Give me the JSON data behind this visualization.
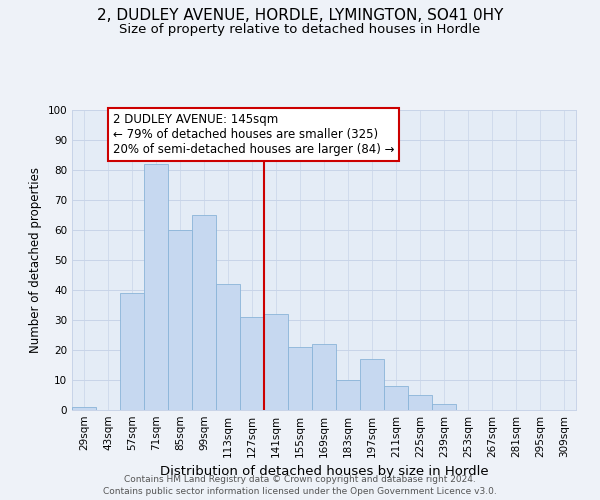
{
  "title": "2, DUDLEY AVENUE, HORDLE, LYMINGTON, SO41 0HY",
  "subtitle": "Size of property relative to detached houses in Hordle",
  "xlabel": "Distribution of detached houses by size in Hordle",
  "ylabel": "Number of detached properties",
  "bar_labels": [
    "29sqm",
    "43sqm",
    "57sqm",
    "71sqm",
    "85sqm",
    "99sqm",
    "113sqm",
    "127sqm",
    "141sqm",
    "155sqm",
    "169sqm",
    "183sqm",
    "197sqm",
    "211sqm",
    "225sqm",
    "239sqm",
    "253sqm",
    "267sqm",
    "281sqm",
    "295sqm",
    "309sqm"
  ],
  "bar_values": [
    1,
    0,
    39,
    82,
    60,
    65,
    42,
    31,
    32,
    21,
    22,
    10,
    17,
    8,
    5,
    2,
    0,
    0,
    0,
    0,
    0
  ],
  "bar_color": "#c6d8f0",
  "bar_edge_color": "#8ab4d8",
  "vline_idx": 8,
  "vline_color": "#cc0000",
  "annotation_text": "2 DUDLEY AVENUE: 145sqm\n← 79% of detached houses are smaller (325)\n20% of semi-detached houses are larger (84) →",
  "annotation_box_color": "#ffffff",
  "annotation_box_edge": "#cc0000",
  "annotation_fontsize": 8.5,
  "ylim": [
    0,
    100
  ],
  "yticks": [
    0,
    10,
    20,
    30,
    40,
    50,
    60,
    70,
    80,
    90,
    100
  ],
  "title_fontsize": 11,
  "subtitle_fontsize": 9.5,
  "xlabel_fontsize": 9.5,
  "ylabel_fontsize": 8.5,
  "tick_fontsize": 7.5,
  "footer_line1": "Contains HM Land Registry data © Crown copyright and database right 2024.",
  "footer_line2": "Contains public sector information licensed under the Open Government Licence v3.0.",
  "footer_fontsize": 6.5,
  "background_color": "#eef2f8",
  "plot_background_color": "#e4ecf6",
  "grid_color": "#c8d4e8"
}
